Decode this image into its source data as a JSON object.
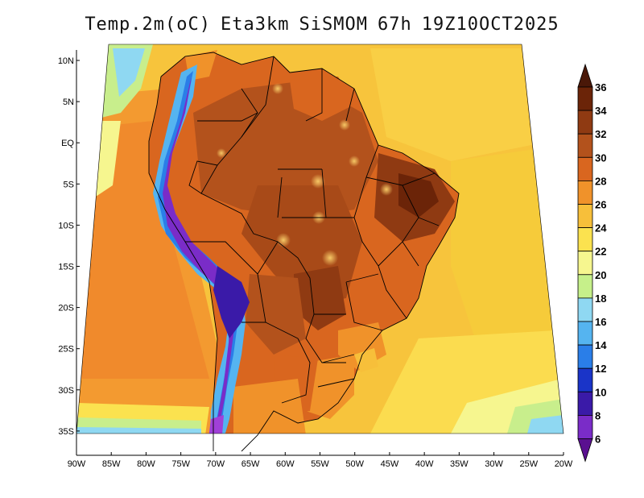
{
  "title": {
    "field": "Temp.2m(oC)",
    "model": "Eta3km",
    "system": "SiSMOM",
    "forecast_hour": "67h",
    "valid_time": "19Z10OCT2025"
  },
  "map": {
    "lon_range": [
      -90,
      -20
    ],
    "lat_range": [
      -37,
      11
    ],
    "lat_ticks": [
      {
        "value": 10,
        "label": "10N"
      },
      {
        "value": 5,
        "label": "5N"
      },
      {
        "value": 0,
        "label": "EQ"
      },
      {
        "value": -5,
        "label": "5S"
      },
      {
        "value": -10,
        "label": "10S"
      },
      {
        "value": -15,
        "label": "15S"
      },
      {
        "value": -20,
        "label": "20S"
      },
      {
        "value": -25,
        "label": "25S"
      },
      {
        "value": -30,
        "label": "30S"
      },
      {
        "value": -35,
        "label": "35S"
      }
    ],
    "lon_ticks": [
      {
        "value": -90,
        "label": "90W"
      },
      {
        "value": -85,
        "label": "85W"
      },
      {
        "value": -80,
        "label": "80W"
      },
      {
        "value": -75,
        "label": "75W"
      },
      {
        "value": -70,
        "label": "70W"
      },
      {
        "value": -65,
        "label": "65W"
      },
      {
        "value": -60,
        "label": "60W"
      },
      {
        "value": -55,
        "label": "55W"
      },
      {
        "value": -50,
        "label": "50W"
      },
      {
        "value": -45,
        "label": "45W"
      },
      {
        "value": -40,
        "label": "40W"
      },
      {
        "value": -35,
        "label": "35W"
      },
      {
        "value": -30,
        "label": "30W"
      },
      {
        "value": -25,
        "label": "25W"
      },
      {
        "value": -20,
        "label": "20W"
      }
    ]
  },
  "colorbar": {
    "levels": [
      {
        "label": "36",
        "color": "#6b2408"
      },
      {
        "label": "34",
        "color": "#8f3a12"
      },
      {
        "label": "32",
        "color": "#b3521c"
      },
      {
        "label": "30",
        "color": "#d9661f"
      },
      {
        "label": "28",
        "color": "#f0922a"
      },
      {
        "label": "26",
        "color": "#f7bf3a"
      },
      {
        "label": "24",
        "color": "#fbe24f"
      },
      {
        "label": "22",
        "color": "#f6f68f"
      },
      {
        "label": "20",
        "color": "#c6f08a"
      },
      {
        "label": "18",
        "color": "#8fd8f2"
      },
      {
        "label": "16",
        "color": "#55b4f0"
      },
      {
        "label": "14",
        "color": "#2a7ee8"
      },
      {
        "label": "12",
        "color": "#1a34c8"
      },
      {
        "label": "10",
        "color": "#3a1aa8"
      },
      {
        "label": "8",
        "color": "#7a2cc8"
      },
      {
        "label": "6",
        "color": "#a040d8"
      }
    ],
    "min_arrow_color": "#5a1090",
    "max_arrow_color": "#4a1808"
  }
}
